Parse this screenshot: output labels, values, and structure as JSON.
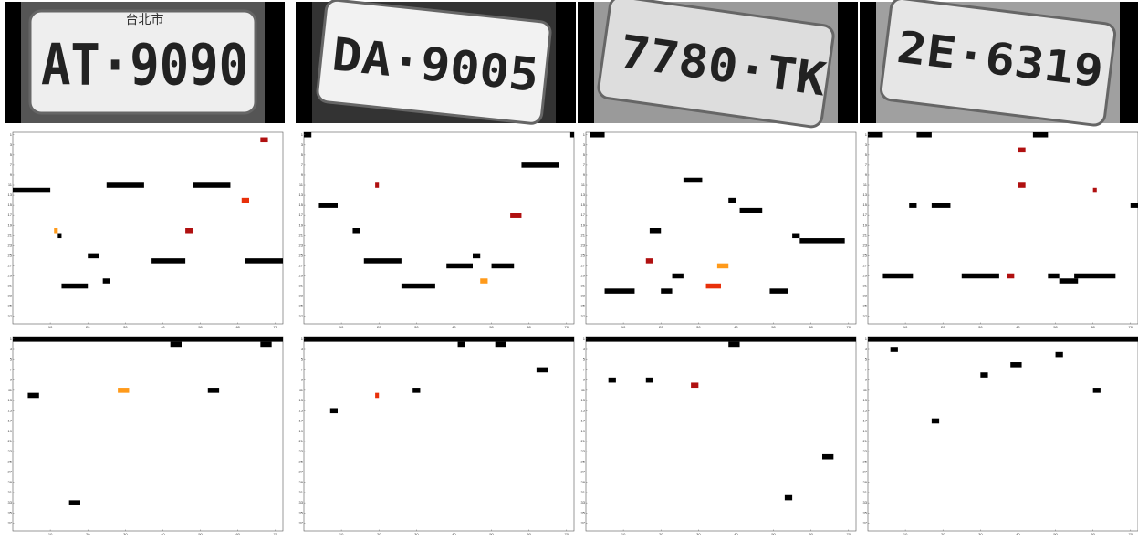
{
  "axes": {
    "xlim": [
      0,
      72
    ],
    "ylim": [
      0,
      38
    ],
    "xticks": [
      10,
      20,
      30,
      40,
      50,
      60,
      70
    ],
    "yticks": [
      1,
      3,
      5,
      7,
      9,
      11,
      13,
      15,
      17,
      19,
      21,
      23,
      25,
      27,
      29,
      31,
      33,
      35,
      37
    ]
  },
  "panels": [
    {
      "plate": {
        "header": "台北市",
        "text": "AT·9090"
      },
      "top_map": [
        {
          "row": 12,
          "x0": 0,
          "x1": 10,
          "level": 1
        },
        {
          "row": 11,
          "x0": 25,
          "x1": 35,
          "level": 1
        },
        {
          "row": 11,
          "x0": 48,
          "x1": 58,
          "level": 1
        },
        {
          "row": 2,
          "x0": 66,
          "x1": 68,
          "level": 0.8
        },
        {
          "row": 26,
          "x0": 37,
          "x1": 46,
          "level": 1
        },
        {
          "row": 26,
          "x0": 62,
          "x1": 72,
          "level": 1
        },
        {
          "row": 31,
          "x0": 13,
          "x1": 20,
          "level": 1
        },
        {
          "row": 25,
          "x0": 20,
          "x1": 23,
          "level": 1
        },
        {
          "row": 30,
          "x0": 24,
          "x1": 26,
          "level": 1
        },
        {
          "row": 20,
          "x0": 11,
          "x1": 12,
          "level": 0.5
        },
        {
          "row": 21,
          "x0": 12,
          "x1": 13,
          "level": 1
        },
        {
          "row": 14,
          "x0": 61,
          "x1": 63,
          "level": 0.6
        },
        {
          "row": 20,
          "x0": 46,
          "x1": 48,
          "level": 0.9
        }
      ],
      "bottom_map": [
        {
          "row": 1,
          "x0": 0,
          "x1": 72,
          "level": 1
        },
        {
          "row": 2,
          "x0": 42,
          "x1": 45,
          "level": 1
        },
        {
          "row": 2,
          "x0": 66,
          "x1": 69,
          "level": 1
        },
        {
          "row": 12,
          "x0": 4,
          "x1": 7,
          "level": 1
        },
        {
          "row": 11,
          "x0": 28,
          "x1": 31,
          "level": 0.5
        },
        {
          "row": 11,
          "x0": 52,
          "x1": 55,
          "level": 1
        },
        {
          "row": 33,
          "x0": 15,
          "x1": 18,
          "level": 1
        }
      ]
    },
    {
      "plate": {
        "header": "",
        "text": "DA·9005"
      },
      "top_map": [
        {
          "row": 7,
          "x0": 58,
          "x1": 68,
          "level": 1
        },
        {
          "row": 11,
          "x0": 19,
          "x1": 20,
          "level": 0.9
        },
        {
          "row": 15,
          "x0": 4,
          "x1": 9,
          "level": 1
        },
        {
          "row": 20,
          "x0": 13,
          "x1": 15,
          "level": 1
        },
        {
          "row": 25,
          "x0": 45,
          "x1": 47,
          "level": 1
        },
        {
          "row": 26,
          "x0": 16,
          "x1": 26,
          "level": 1
        },
        {
          "row": 27,
          "x0": 38,
          "x1": 45,
          "level": 1
        },
        {
          "row": 27,
          "x0": 50,
          "x1": 56,
          "level": 1
        },
        {
          "row": 31,
          "x0": 26,
          "x1": 35,
          "level": 1
        },
        {
          "row": 17,
          "x0": 55,
          "x1": 58,
          "level": 0.9
        },
        {
          "row": 1,
          "x0": 0,
          "x1": 2,
          "level": 1
        },
        {
          "row": 1,
          "x0": 71,
          "x1": 72,
          "level": 1
        },
        {
          "row": 30,
          "x0": 47,
          "x1": 49,
          "level": 0.5
        }
      ],
      "bottom_map": [
        {
          "row": 1,
          "x0": 0,
          "x1": 72,
          "level": 1
        },
        {
          "row": 2,
          "x0": 41,
          "x1": 43,
          "level": 1
        },
        {
          "row": 2,
          "x0": 51,
          "x1": 54,
          "level": 1
        },
        {
          "row": 7,
          "x0": 62,
          "x1": 65,
          "level": 1
        },
        {
          "row": 11,
          "x0": 29,
          "x1": 31,
          "level": 1
        },
        {
          "row": 12,
          "x0": 19,
          "x1": 20,
          "level": 0.6
        },
        {
          "row": 15,
          "x0": 7,
          "x1": 9,
          "level": 1
        }
      ]
    },
    {
      "plate": {
        "header": "",
        "text": "7780·TK"
      },
      "top_map": [
        {
          "row": 1,
          "x0": 1,
          "x1": 5,
          "level": 1
        },
        {
          "row": 10,
          "x0": 26,
          "x1": 31,
          "level": 1
        },
        {
          "row": 14,
          "x0": 38,
          "x1": 40,
          "level": 1
        },
        {
          "row": 16,
          "x0": 41,
          "x1": 47,
          "level": 1
        },
        {
          "row": 20,
          "x0": 17,
          "x1": 20,
          "level": 1
        },
        {
          "row": 21,
          "x0": 55,
          "x1": 57,
          "level": 1
        },
        {
          "row": 22,
          "x0": 57,
          "x1": 69,
          "level": 1
        },
        {
          "row": 26,
          "x0": 16,
          "x1": 18,
          "level": 0.8
        },
        {
          "row": 29,
          "x0": 23,
          "x1": 26,
          "level": 1
        },
        {
          "row": 31,
          "x0": 32,
          "x1": 36,
          "level": 0.6
        },
        {
          "row": 32,
          "x0": 5,
          "x1": 13,
          "level": 1
        },
        {
          "row": 32,
          "x0": 20,
          "x1": 23,
          "level": 1
        },
        {
          "row": 32,
          "x0": 49,
          "x1": 54,
          "level": 1
        },
        {
          "row": 27,
          "x0": 35,
          "x1": 38,
          "level": 0.4
        }
      ],
      "bottom_map": [
        {
          "row": 1,
          "x0": 0,
          "x1": 72,
          "level": 1
        },
        {
          "row": 2,
          "x0": 38,
          "x1": 41,
          "level": 1
        },
        {
          "row": 9,
          "x0": 6,
          "x1": 8,
          "level": 1
        },
        {
          "row": 9,
          "x0": 16,
          "x1": 18,
          "level": 1
        },
        {
          "row": 10,
          "x0": 28,
          "x1": 30,
          "level": 0.8
        },
        {
          "row": 24,
          "x0": 63,
          "x1": 66,
          "level": 1
        },
        {
          "row": 32,
          "x0": 53,
          "x1": 55,
          "level": 1
        }
      ]
    },
    {
      "plate": {
        "header": "",
        "text": "2E·6319"
      },
      "top_map": [
        {
          "row": 1,
          "x0": 0,
          "x1": 4,
          "level": 1
        },
        {
          "row": 1,
          "x0": 13,
          "x1": 17,
          "level": 1
        },
        {
          "row": 1,
          "x0": 44,
          "x1": 48,
          "level": 1
        },
        {
          "row": 4,
          "x0": 40,
          "x1": 42,
          "level": 0.9
        },
        {
          "row": 11,
          "x0": 40,
          "x1": 42,
          "level": 0.9
        },
        {
          "row": 12,
          "x0": 60,
          "x1": 61,
          "level": 0.8
        },
        {
          "row": 15,
          "x0": 11,
          "x1": 13,
          "level": 1
        },
        {
          "row": 15,
          "x0": 17,
          "x1": 22,
          "level": 1
        },
        {
          "row": 15,
          "x0": 70,
          "x1": 72,
          "level": 1
        },
        {
          "row": 29,
          "x0": 4,
          "x1": 12,
          "level": 1
        },
        {
          "row": 29,
          "x0": 25,
          "x1": 35,
          "level": 1
        },
        {
          "row": 29,
          "x0": 37,
          "x1": 39,
          "level": 0.8
        },
        {
          "row": 29,
          "x0": 48,
          "x1": 51,
          "level": 1
        },
        {
          "row": 29,
          "x0": 55,
          "x1": 66,
          "level": 1
        },
        {
          "row": 30,
          "x0": 51,
          "x1": 56,
          "level": 1
        }
      ],
      "bottom_map": [
        {
          "row": 1,
          "x0": 0,
          "x1": 72,
          "level": 1
        },
        {
          "row": 3,
          "x0": 6,
          "x1": 8,
          "level": 1
        },
        {
          "row": 4,
          "x0": 50,
          "x1": 52,
          "level": 1
        },
        {
          "row": 6,
          "x0": 38,
          "x1": 41,
          "level": 1
        },
        {
          "row": 8,
          "x0": 30,
          "x1": 32,
          "level": 1
        },
        {
          "row": 11,
          "x0": 60,
          "x1": 62,
          "level": 1
        },
        {
          "row": 17,
          "x0": 17,
          "x1": 19,
          "level": 1
        }
      ]
    }
  ]
}
